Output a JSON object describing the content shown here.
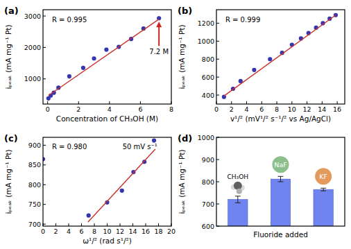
{
  "chart_data": [
    {
      "type": "scatter",
      "title": "(a)",
      "xlabel": "Concentration of CH₃OH (M)",
      "ylabel": "iₚₑₐₖ (mA mg⁻¹ Pt)",
      "xlim": [
        -0.3,
        8
      ],
      "xticks": [
        0,
        2,
        4,
        6,
        8
      ],
      "ylim": [
        200,
        3200
      ],
      "yticks": [
        1000,
        2000,
        3000
      ],
      "annotations": [
        "R = 0.995",
        "7.2 M"
      ],
      "series": [
        {
          "type": "scatter",
          "marker": "circle",
          "color": "#3535b0",
          "x": [
            0.05,
            0.2,
            0.4,
            0.7,
            1.4,
            2.3,
            3.0,
            3.8,
            4.6,
            5.4,
            6.2,
            7.2
          ],
          "values": [
            380,
            470,
            560,
            720,
            1080,
            1350,
            1650,
            1930,
            2020,
            2270,
            2600,
            2930
          ]
        },
        {
          "type": "line",
          "line_style": "solid",
          "color": "#c8302c",
          "x": [
            0.05,
            7.2
          ],
          "values": [
            470,
            2900
          ]
        }
      ]
    },
    {
      "type": "scatter",
      "title": "(b)",
      "xlabel": "v¹/² (mV¹/² s⁻¹/² vs Ag/AgCl)",
      "ylabel": "iₚₑₐₖ (mA mg⁻¹ Pt)",
      "xlim": [
        0,
        17
      ],
      "xticks": [
        0,
        2,
        4,
        6,
        8,
        10,
        12,
        14,
        16
      ],
      "ylim": [
        300,
        1350
      ],
      "yticks": [
        400,
        600,
        800,
        1000,
        1200
      ],
      "annotations": [
        "R = 0.999"
      ],
      "series": [
        {
          "type": "scatter",
          "marker": "circle",
          "color": "#3535b0",
          "x": [
            1,
            2.2,
            3.2,
            5,
            7.1,
            8.7,
            10,
            11.2,
            12.2,
            13.2,
            14.1,
            15,
            15.8
          ],
          "values": [
            380,
            470,
            555,
            680,
            800,
            870,
            960,
            1030,
            1090,
            1150,
            1200,
            1250,
            1290
          ]
        },
        {
          "type": "line",
          "line_style": "solid",
          "color": "#c8302c",
          "x": [
            1,
            15.8
          ],
          "values": [
            390,
            1290
          ]
        }
      ]
    },
    {
      "type": "scatter",
      "title": "(c)",
      "xlabel": "ω¹/² (rad s¹/²)",
      "ylabel": "iₚₑₐₖ (mA mg⁻¹ Pt)",
      "xlim": [
        0,
        20
      ],
      "xticks": [
        0,
        2,
        4,
        6,
        8,
        10,
        12,
        14,
        16,
        18,
        20
      ],
      "ylim": [
        695,
        920
      ],
      "yticks": [
        700,
        750,
        800,
        850,
        900
      ],
      "annotations": [
        "R = 0.980",
        "50 mV s⁻¹"
      ],
      "series": [
        {
          "type": "scatter",
          "marker": "circle",
          "color": "#3535b0",
          "x": [
            0,
            7.1,
            10,
            12.3,
            14.1,
            15.8,
            17.3
          ],
          "values": [
            865,
            722,
            755,
            785,
            832,
            858,
            912
          ]
        },
        {
          "type": "line",
          "line_style": "solid",
          "color": "#c8302c",
          "x": [
            7,
            17.5
          ],
          "values": [
            705,
            890
          ]
        }
      ]
    },
    {
      "type": "bar",
      "title": "(d)",
      "xlabel": "Fluoride added",
      "ylabel": "iₚₑₐₖ (mA mg⁻¹ Pt)",
      "categories": [
        "CH₃OH",
        "NaF",
        "KF"
      ],
      "values": [
        720,
        812,
        765
      ],
      "errors": [
        15,
        12,
        6
      ],
      "color": "#6f84ee",
      "ylim": [
        600,
        1000
      ],
      "yticks": [
        600,
        700,
        800,
        900,
        1000
      ]
    }
  ]
}
